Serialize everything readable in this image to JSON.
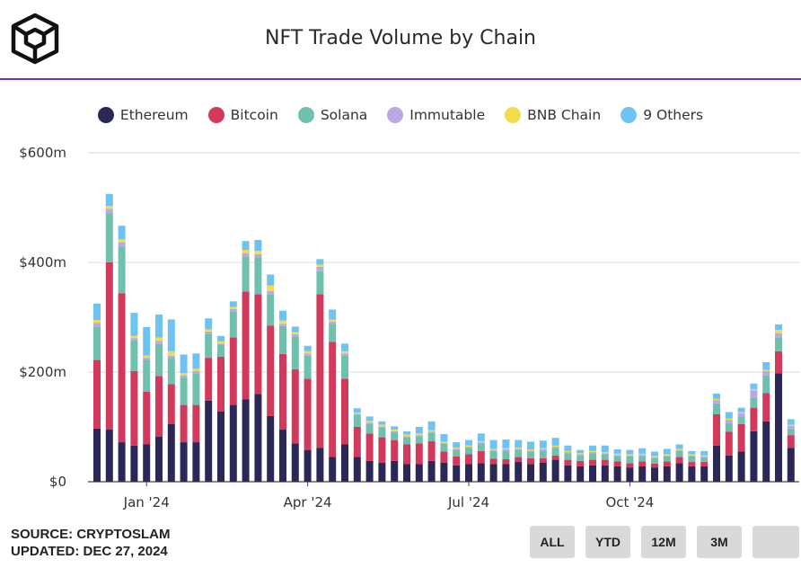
{
  "header": {
    "logo_icon": "cube-logo-icon",
    "title": "NFT Trade Volume by Chain"
  },
  "legend": [
    {
      "label": "Ethereum",
      "color": "#2b2757"
    },
    {
      "label": "Bitcoin",
      "color": "#d23a5c"
    },
    {
      "label": "Solana",
      "color": "#6fc1ad"
    },
    {
      "label": "Immutable",
      "color": "#b9a9e3"
    },
    {
      "label": "BNB Chain",
      "color": "#f3dc4b"
    },
    {
      "label": "9 Others",
      "color": "#6ec3f2"
    }
  ],
  "footer": {
    "source": "SOURCE: CRYPTOSLAM",
    "updated": "UPDATED: DEC 27, 2024"
  },
  "range_buttons": [
    "ALL",
    "YTD",
    "12M",
    "3M",
    ""
  ],
  "chart_data": {
    "type": "bar",
    "stacked": true,
    "title": "NFT Trade Volume by Chain",
    "interval": "weekly",
    "ylim": [
      0,
      600
    ],
    "y_ticks": [
      0,
      200,
      400,
      600
    ],
    "y_tick_labels": [
      "$0",
      "$200m",
      "$400m",
      "$600m"
    ],
    "x_tick_labels": [
      {
        "label": "Jan '24",
        "index": 4
      },
      {
        "label": "Apr '24",
        "index": 17
      },
      {
        "label": "Jul '24",
        "index": 30
      },
      {
        "label": "Oct '24",
        "index": 43
      }
    ],
    "grid": true,
    "legend_position": "top",
    "unit": "$m",
    "series": [
      {
        "name": "Ethereum",
        "color": "#2b2757",
        "values": [
          97,
          95,
          72,
          66,
          68,
          82,
          105,
          72,
          72,
          148,
          128,
          140,
          150,
          160,
          120,
          95,
          70,
          58,
          62,
          45,
          68,
          45,
          38,
          35,
          38,
          32,
          32,
          38,
          35,
          30,
          32,
          34,
          32,
          32,
          36,
          32,
          35,
          40,
          30,
          28,
          30,
          30,
          28,
          26,
          28,
          26,
          28,
          34,
          28,
          28,
          66,
          48,
          55,
          92,
          110,
          198,
          62
        ]
      },
      {
        "name": "Bitcoin",
        "color": "#d23a5c",
        "values": [
          125,
          305,
          272,
          136,
          96,
          111,
          73,
          68,
          68,
          78,
          100,
          123,
          197,
          182,
          165,
          138,
          135,
          130,
          280,
          210,
          120,
          55,
          50,
          46,
          38,
          36,
          38,
          36,
          20,
          16,
          18,
          22,
          10,
          9,
          9,
          11,
          8,
          8,
          10,
          10,
          10,
          10,
          9,
          8,
          9,
          7,
          9,
          11,
          8,
          8,
          57,
          43,
          50,
          43,
          52,
          40,
          23
        ]
      },
      {
        "name": "Solana",
        "color": "#6fc1ad",
        "values": [
          60,
          90,
          85,
          56,
          58,
          58,
          48,
          50,
          58,
          44,
          22,
          48,
          64,
          67,
          57,
          51,
          60,
          42,
          42,
          33,
          42,
          22,
          18,
          18,
          14,
          13,
          13,
          15,
          14,
          12,
          12,
          14,
          14,
          16,
          13,
          12,
          14,
          14,
          12,
          10,
          12,
          10,
          10,
          12,
          10,
          10,
          9,
          11,
          10,
          8,
          20,
          16,
          14,
          18,
          32,
          25,
          11
        ]
      },
      {
        "name": "Immutable",
        "color": "#b9a9e3",
        "values": [
          8,
          8,
          8,
          4,
          4,
          6,
          4,
          4,
          4,
          4,
          2,
          4,
          6,
          6,
          6,
          4,
          4,
          4,
          8,
          4,
          4,
          2,
          2,
          2,
          2,
          2,
          2,
          2,
          2,
          2,
          2,
          2,
          2,
          2,
          2,
          2,
          2,
          2,
          2,
          2,
          2,
          2,
          2,
          2,
          2,
          2,
          2,
          2,
          2,
          2,
          6,
          6,
          6,
          14,
          8,
          8,
          6
        ]
      },
      {
        "name": "BNB Chain",
        "color": "#f3dc4b",
        "values": [
          5,
          5,
          5,
          4,
          4,
          6,
          8,
          4,
          4,
          4,
          4,
          4,
          6,
          6,
          10,
          6,
          4,
          4,
          4,
          4,
          4,
          2,
          3,
          3,
          3,
          3,
          3,
          3,
          2,
          2,
          2,
          2,
          2,
          2,
          2,
          2,
          2,
          2,
          2,
          2,
          2,
          2,
          2,
          2,
          2,
          2,
          2,
          2,
          2,
          2,
          2,
          2,
          2,
          2,
          2,
          6,
          2
        ]
      },
      {
        "name": "9 Others",
        "color": "#6ec3f2",
        "values": [
          30,
          22,
          25,
          42,
          52,
          42,
          58,
          34,
          28,
          20,
          10,
          10,
          16,
          20,
          20,
          18,
          10,
          10,
          10,
          18,
          14,
          8,
          8,
          6,
          6,
          6,
          12,
          16,
          14,
          10,
          10,
          14,
          16,
          16,
          14,
          14,
          14,
          14,
          10,
          6,
          10,
          12,
          8,
          8,
          10,
          8,
          10,
          8,
          6,
          8,
          10,
          12,
          8,
          10,
          14,
          10,
          10
        ]
      }
    ]
  }
}
